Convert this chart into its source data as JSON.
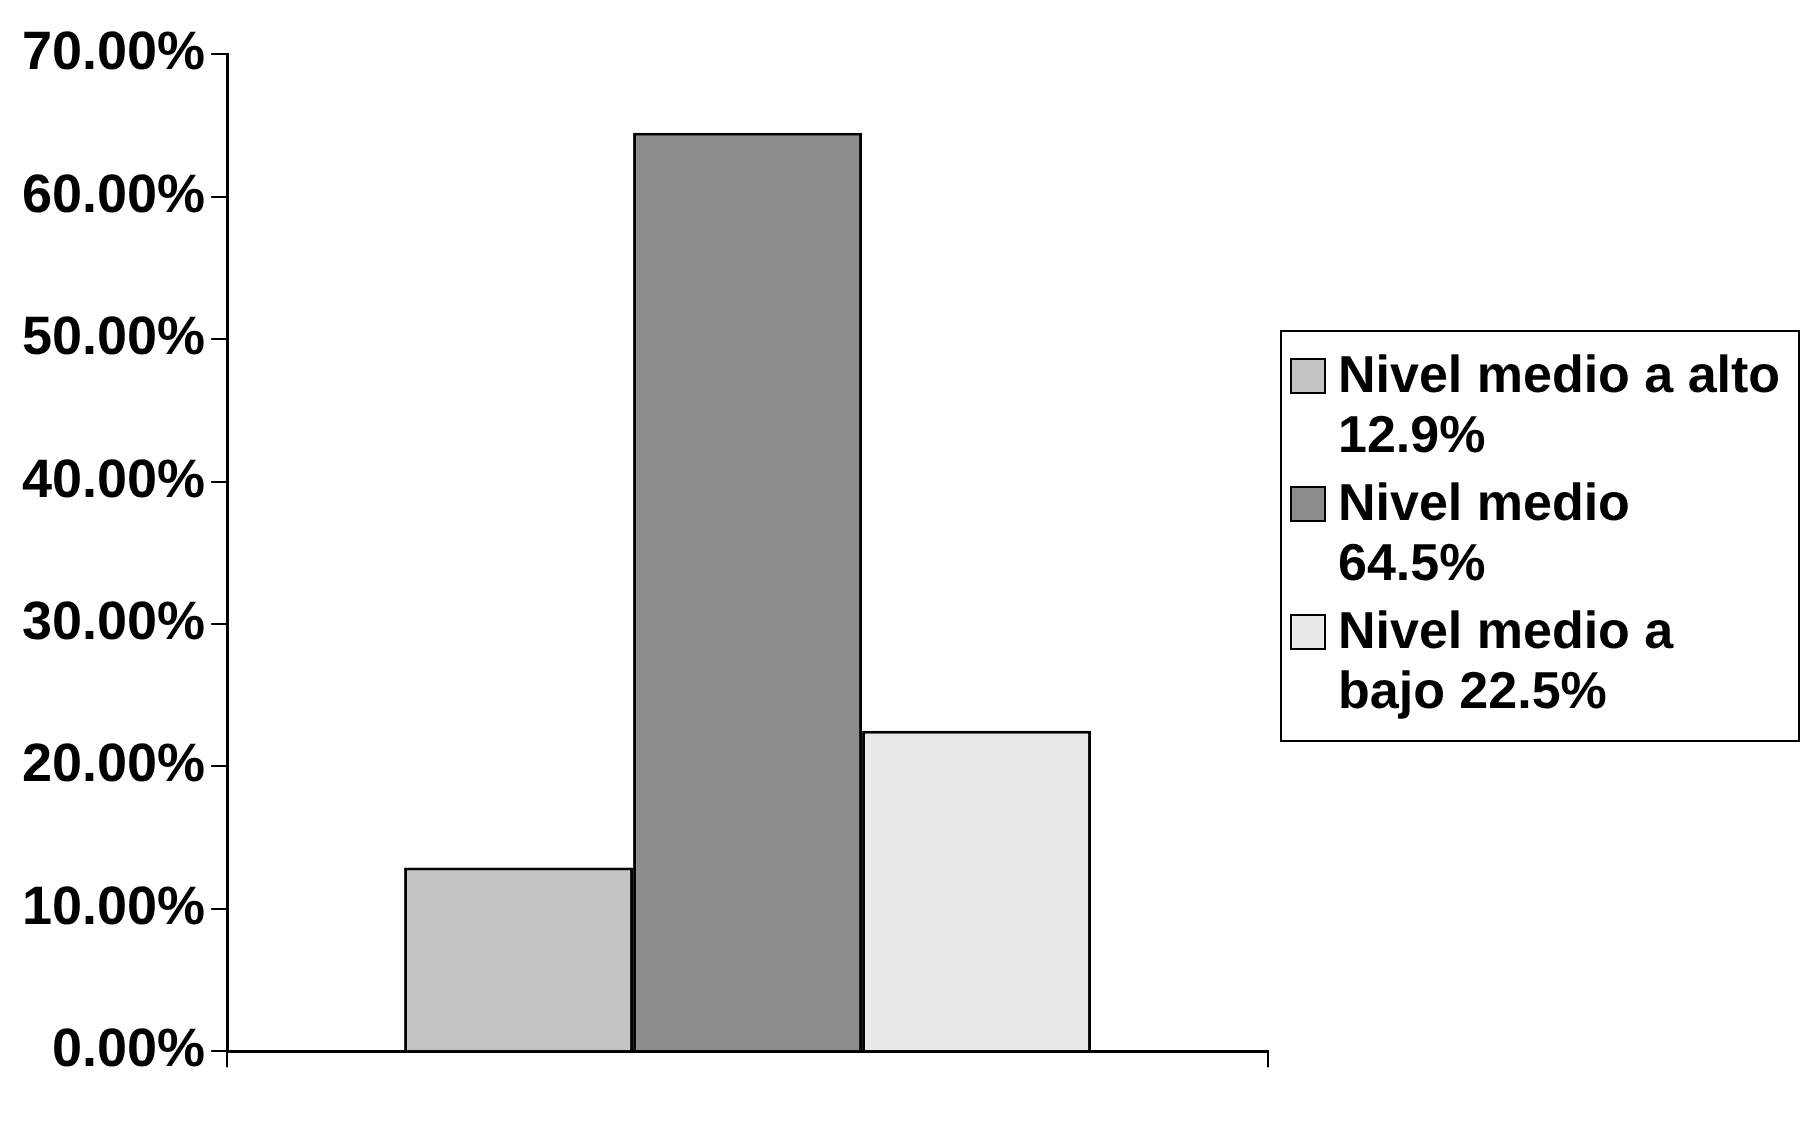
{
  "chart_data": {
    "type": "bar",
    "categories": [
      null
    ],
    "series": [
      {
        "name": "Nivel medio a alto 12.9%",
        "color": "#c4c4c4",
        "values": [
          12.9
        ]
      },
      {
        "name": "Nivel medio 64.5%",
        "color": "#8c8c8c",
        "values": [
          64.5
        ]
      },
      {
        "name": "Nivel medio a bajo 22.5%",
        "color": "#e8e8e8",
        "values": [
          22.5
        ]
      }
    ],
    "ylim": [
      0,
      70
    ],
    "yticks": [
      {
        "value": 0,
        "label": "0.00%"
      },
      {
        "value": 10,
        "label": "10.00%"
      },
      {
        "value": 20,
        "label": "20.00%"
      },
      {
        "value": 30,
        "label": "30.00%"
      },
      {
        "value": 40,
        "label": "40.00%"
      },
      {
        "value": 50,
        "label": "50.00%"
      },
      {
        "value": 60,
        "label": "60.00%"
      },
      {
        "value": 70,
        "label": "70.00%"
      }
    ],
    "grid": false,
    "legend": "right"
  }
}
